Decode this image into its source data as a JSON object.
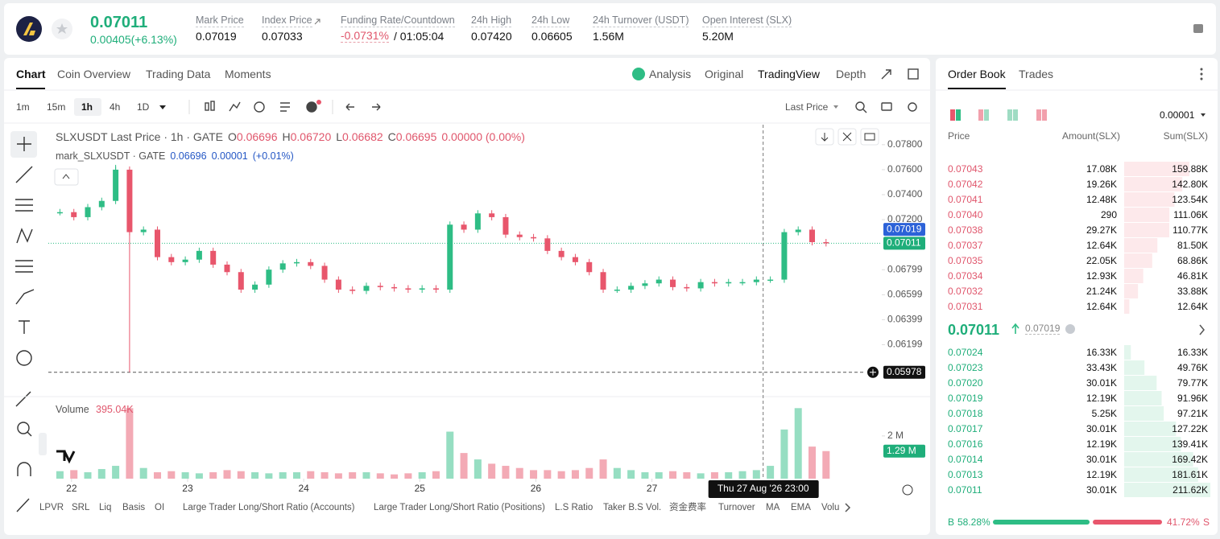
{
  "header": {
    "price": "0.07011",
    "change": "0.00405(+6.13%)",
    "stats": [
      {
        "label": "Mark Price",
        "value": "0.07019"
      },
      {
        "label": "Index Price",
        "value": "0.07033"
      },
      {
        "label": "Funding Rate/Countdown",
        "value": "-0.0731%",
        "countdown": "/ 01:05:04"
      },
      {
        "label": "24h High",
        "value": "0.07420"
      },
      {
        "label": "24h Low",
        "value": "0.06605"
      },
      {
        "label": "24h Turnover (USDT)",
        "value": "1.56M"
      },
      {
        "label": "Open Interest (SLX)",
        "value": "5.20M"
      }
    ]
  },
  "tabs": [
    "Chart",
    "Coin Overview",
    "Trading Data",
    "Moments"
  ],
  "views": [
    "Analysis",
    "Original",
    "TradingView",
    "Depth"
  ],
  "intervals": [
    "1m",
    "15m",
    "1h",
    "4h",
    "1D"
  ],
  "price_source": "Last Price",
  "legend": {
    "title": "SLXUSDT Last Price · 1h · GATE",
    "ohlc": [
      {
        "label": "O",
        "value": "0.06696"
      },
      {
        "label": "H",
        "value": "0.06720"
      },
      {
        "label": "L",
        "value": "0.06682"
      },
      {
        "label": "C",
        "value": "0.06695"
      }
    ],
    "change": "0.00000 (0.00%)",
    "mark_title": "mark_SLXUSDT · GATE",
    "mark_value": "0.06696",
    "mark_change": "0.00001",
    "mark_pct": "(+0.01%)"
  },
  "chart_data": {
    "type": "candlestick",
    "x": [
      21.9,
      22.02,
      22.14,
      22.26,
      22.38,
      22.5,
      22.62,
      22.74,
      22.86,
      22.98,
      23.1,
      23.22,
      23.34,
      23.46,
      23.58,
      23.7,
      23.82,
      23.94,
      24.06,
      24.18,
      24.3,
      24.42,
      24.54,
      24.66,
      24.78,
      24.9,
      25.02,
      25.14,
      25.26,
      25.38,
      25.5,
      25.62,
      25.74,
      25.86,
      25.98,
      26.1,
      26.22,
      26.34,
      26.46,
      26.58,
      26.7,
      26.82,
      26.94,
      27.06,
      27.18,
      27.3,
      27.42,
      27.54,
      27.66,
      27.78,
      27.9,
      28.02,
      28.14,
      28.26,
      28.38,
      28.5
    ],
    "values": [
      0.0726,
      0.0722,
      0.073,
      0.0735,
      0.076,
      0.071,
      0.0712,
      0.069,
      0.0686,
      0.0688,
      0.0695,
      0.0684,
      0.0678,
      0.0664,
      0.0668,
      0.068,
      0.0685,
      0.0686,
      0.0683,
      0.0672,
      0.0664,
      0.0663,
      0.0667,
      0.0666,
      0.0665,
      0.0664,
      0.0665,
      0.0664,
      0.0716,
      0.0712,
      0.0725,
      0.0722,
      0.0708,
      0.0706,
      0.0705,
      0.0695,
      0.069,
      0.0686,
      0.0678,
      0.0664,
      0.0664,
      0.0667,
      0.0669,
      0.0672,
      0.0666,
      0.0665,
      0.067,
      0.0669,
      0.067,
      0.067,
      0.0672,
      0.0672,
      0.071,
      0.0712,
      0.0702,
      0.07011
    ],
    "xlim": [
      21.8,
      28.98
    ],
    "xticks": [
      22,
      23,
      24,
      25,
      26,
      27
    ],
    "ylim": [
      0.0579,
      0.0796
    ],
    "yticks": [
      {
        "value": 0.078,
        "label": "0.07800"
      },
      {
        "value": 0.076,
        "label": "0.07600"
      },
      {
        "value": 0.074,
        "label": "0.07400"
      },
      {
        "value": 0.072,
        "label": "0.07200"
      },
      0.06799,
      0.06599,
      0.06399,
      0.06199
    ],
    "up_color": "#2ebd85",
    "down_color": "#e8566c",
    "mark_price": 0.07019,
    "last_price": 0.07011,
    "low_marker": 0.05978,
    "crosshair": {
      "x": 27.958,
      "label": "Thu 27 Aug '26  23:00"
    },
    "volume": {
      "title": "Volume",
      "current": "395.04K",
      "values": [
        0.35,
        0.4,
        0.3,
        0.45,
        0.6,
        3.3,
        0.5,
        0.3,
        0.35,
        0.3,
        0.25,
        0.3,
        0.4,
        0.35,
        0.3,
        0.25,
        0.3,
        0.3,
        0.35,
        0.3,
        0.25,
        0.3,
        0.3,
        0.25,
        0.2,
        0.25,
        0.3,
        0.35,
        2.2,
        1.2,
        0.9,
        0.7,
        0.6,
        0.5,
        0.4,
        0.4,
        0.35,
        0.4,
        0.5,
        0.9,
        0.5,
        0.4,
        0.3,
        0.3,
        0.35,
        0.3,
        0.25,
        0.3,
        0.3,
        0.35,
        0.4,
        0.6,
        2.3,
        3.3,
        1.5,
        1.29
      ],
      "y2lim": [
        0,
        3.5
      ],
      "y2ticks": [
        {
          "value": 2,
          "label": "2 M"
        }
      ],
      "last": {
        "value": 1.29,
        "label": "1.29 M"
      }
    }
  },
  "indicators": [
    "LPVR",
    "SRL",
    "Liq",
    "Basis",
    "OI",
    "Large Trader Long/Short Ratio (Accounts)",
    "Large Trader Long/Short Ratio (Positions)",
    "L.S Ratio",
    "Taker B.S Vol.",
    "资金费率",
    "Turnover",
    "MA",
    "EMA",
    "Volu"
  ],
  "order_book": {
    "tabs": [
      "Order Book",
      "Trades"
    ],
    "precision": "0.00001",
    "headers": [
      "Price",
      "Amount(SLX)",
      "Sum(SLX)"
    ],
    "asks": [
      [
        "0.07043",
        "17.08K",
        "159.88K"
      ],
      [
        "0.07042",
        "19.26K",
        "142.80K"
      ],
      [
        "0.07041",
        "12.48K",
        "123.54K"
      ],
      [
        "0.07040",
        "290",
        "111.06K"
      ],
      [
        "0.07038",
        "29.27K",
        "110.77K"
      ],
      [
        "0.07037",
        "12.64K",
        "81.50K"
      ],
      [
        "0.07035",
        "22.05K",
        "68.86K"
      ],
      [
        "0.07034",
        "12.93K",
        "46.81K"
      ],
      [
        "0.07032",
        "21.24K",
        "33.88K"
      ],
      [
        "0.07031",
        "12.64K",
        "12.64K"
      ]
    ],
    "last": "0.07011",
    "mark": "0.07019",
    "bids": [
      [
        "0.07024",
        "16.33K",
        "16.33K"
      ],
      [
        "0.07023",
        "33.43K",
        "49.76K"
      ],
      [
        "0.07020",
        "30.01K",
        "79.77K"
      ],
      [
        "0.07019",
        "12.19K",
        "91.96K"
      ],
      [
        "0.07018",
        "5.25K",
        "97.21K"
      ],
      [
        "0.07017",
        "30.01K",
        "127.22K"
      ],
      [
        "0.07016",
        "12.19K",
        "139.41K"
      ],
      [
        "0.07014",
        "30.01K",
        "169.42K"
      ],
      [
        "0.07013",
        "12.19K",
        "181.61K"
      ],
      [
        "0.07011",
        "30.01K",
        "211.62K"
      ]
    ],
    "buy_label": "B",
    "buy": {
      "value": 58.28,
      "label": "58.28%"
    },
    "sell": {
      "value": 41.72,
      "label": "41.72%"
    },
    "sell_label": "S"
  }
}
